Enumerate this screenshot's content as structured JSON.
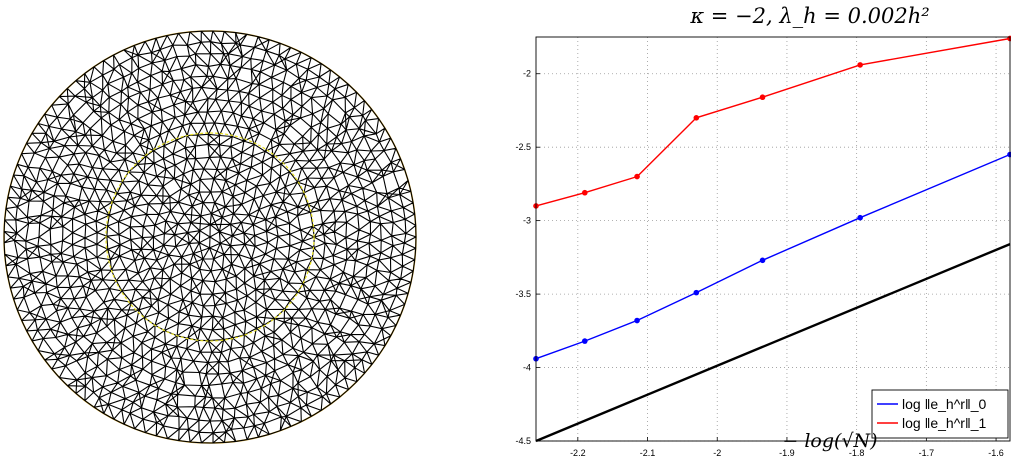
{
  "mesh": {
    "outer_boundary_color": "#d4a017",
    "inner_interface_color": "#e8e020",
    "edge_color": "#000000"
  },
  "chart_data": {
    "type": "line",
    "title": "κ = −2, λ_h = 0.002h²",
    "xlabel": "− log(√N)",
    "ylabel": "",
    "xlim": [
      -2.26,
      -1.58
    ],
    "ylim": [
      -4.5,
      -1.75
    ],
    "xticks": [
      -2.2,
      -2.1,
      -2,
      -1.9,
      -1.8,
      -1.7,
      -1.6
    ],
    "xtick_labels": [
      "-2.2",
      "-2.1",
      "-2",
      "-1.9",
      "-1.8",
      "-1.7",
      "-1.6"
    ],
    "yticks": [
      -4.5,
      -4,
      -3.5,
      -3,
      -2.5,
      -2
    ],
    "ytick_labels": [
      "-4.5",
      "-4",
      "-3.5",
      "-3",
      "-2.5",
      "-2"
    ],
    "grid": true,
    "legend_position": "bottom-right",
    "series": [
      {
        "name": "log ‖e_h^r‖_0",
        "color": "#0000ff",
        "markers": true,
        "x": [
          -2.26,
          -2.19,
          -2.115,
          -2.03,
          -1.935,
          -1.795,
          -1.58
        ],
        "y": [
          -3.94,
          -3.82,
          -3.68,
          -3.49,
          -3.27,
          -2.98,
          -2.55
        ]
      },
      {
        "name": "log ‖e_h^r‖_1",
        "color": "#ff0000",
        "markers": true,
        "x": [
          -2.26,
          -2.19,
          -2.115,
          -2.03,
          -1.935,
          -1.795,
          -1.58
        ],
        "y": [
          -2.9,
          -2.81,
          -2.7,
          -2.3,
          -2.16,
          -1.94,
          -1.76
        ]
      },
      {
        "name": "",
        "color": "#000000",
        "markers": false,
        "x": [
          -2.26,
          -1.58
        ],
        "y": [
          -4.5,
          -3.16
        ]
      }
    ]
  }
}
